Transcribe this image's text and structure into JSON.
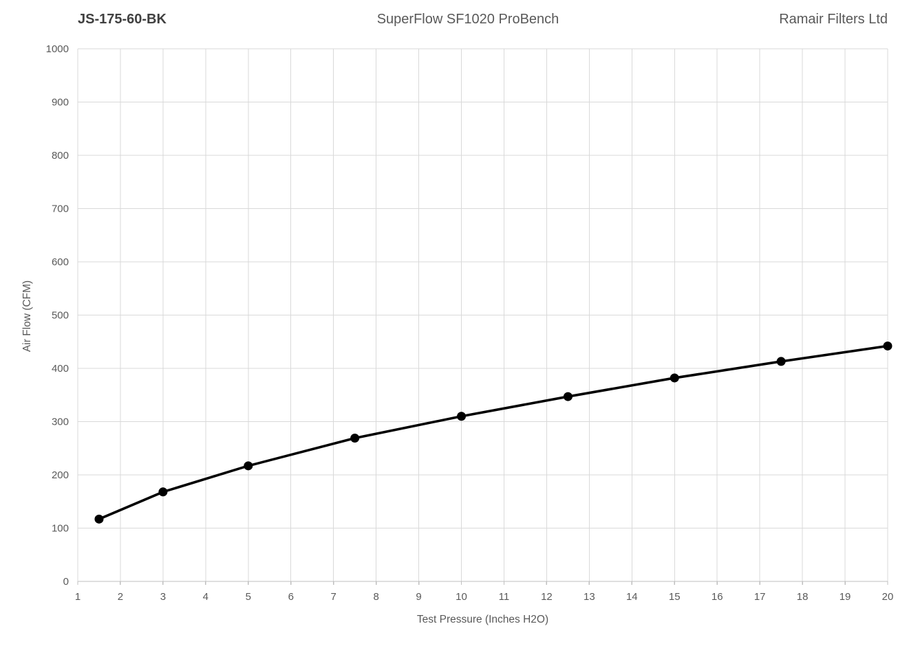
{
  "header": {
    "part_number": "JS-175-60-BK",
    "bench_name": "SuperFlow SF1020 ProBench",
    "company": "Ramair Filters Ltd"
  },
  "chart_data": {
    "type": "line",
    "title": "SuperFlow SF1020 ProBench",
    "xlabel": "Test Pressure (Inches H2O)",
    "ylabel": "Air Flow (CFM)",
    "xlim": [
      1,
      20
    ],
    "ylim": [
      0,
      1000
    ],
    "x_ticks": [
      1,
      2,
      3,
      4,
      5,
      6,
      7,
      8,
      9,
      10,
      11,
      12,
      13,
      14,
      15,
      16,
      17,
      18,
      19,
      20
    ],
    "y_ticks": [
      0,
      100,
      200,
      300,
      400,
      500,
      600,
      700,
      800,
      900,
      1000
    ],
    "grid": true,
    "legend": "none",
    "series": [
      {
        "name": "JS-175-60-BK",
        "x": [
          1.5,
          3,
          5,
          7.5,
          10,
          12.5,
          15,
          17.5,
          20
        ],
        "y": [
          117,
          168,
          217,
          269,
          310,
          347,
          382,
          413,
          442
        ],
        "marker": "circle"
      }
    ]
  },
  "colors": {
    "background": "#ffffff",
    "gridline": "#d9d9d9",
    "axis_line": "#bfbfbf",
    "tick_label": "#595959",
    "series_line": "#000000",
    "marker_fill": "#000000"
  }
}
